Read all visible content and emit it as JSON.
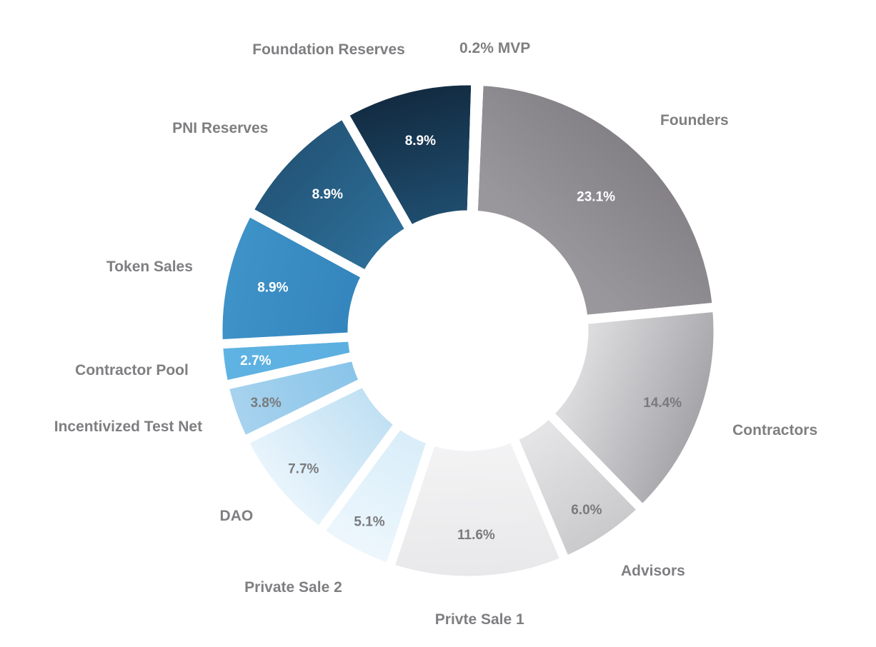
{
  "chart_data": {
    "type": "pie",
    "donut": true,
    "slices": [
      {
        "label": "Founders",
        "value": 23.1,
        "display": "23.1%",
        "color_outer": "#838085",
        "color_inner": "#99979c",
        "text_color": "#ffffff"
      },
      {
        "label": "Contractors",
        "value": 14.4,
        "display": "14.4%",
        "color_outer": "#a4a3a7",
        "color_inner": "#dcdcde",
        "text_color": "#7a7a7d"
      },
      {
        "label": "Advisors",
        "value": 6.0,
        "display": "6.0%",
        "color_outer": "#c9c9cc",
        "color_inner": "#e6e6e8",
        "text_color": "#7a7a7d"
      },
      {
        "label": "Privte Sale 1",
        "value": 11.6,
        "display": "11.6%",
        "color_outer": "#e8e8ea",
        "color_inner": "#f3f3f4",
        "text_color": "#7a7a7d"
      },
      {
        "label": "Private Sale 2",
        "value": 5.1,
        "display": "5.1%",
        "color_outer": "#eef7fd",
        "color_inner": "#d8edf9",
        "text_color": "#7a7a7d"
      },
      {
        "label": "DAO",
        "value": 7.7,
        "display": "7.7%",
        "color_outer": "#eaf5fc",
        "color_inner": "#bfe0f3",
        "text_color": "#7a7a7d"
      },
      {
        "label": "Incentivized Test Net",
        "value": 3.8,
        "display": "3.8%",
        "color_outer": "#a8d3ee",
        "color_inner": "#88c4e9",
        "text_color": "#7a7a7d"
      },
      {
        "label": "Contractor  Pool",
        "value": 2.7,
        "display": "2.7%",
        "color_outer": "#5fb3e3",
        "color_inner": "#5cafe0",
        "text_color": "#ffffff"
      },
      {
        "label": "Token Sales",
        "value": 8.9,
        "display": "8.9%",
        "color_outer": "#3e93c8",
        "color_inner": "#3485bd",
        "text_color": "#ffffff"
      },
      {
        "label": "PNI Reserves",
        "value": 8.9,
        "display": "8.9%",
        "color_outer": "#235578",
        "color_inner": "#2d6e98",
        "text_color": "#ffffff"
      },
      {
        "label": "Foundation Reserves",
        "value": 8.9,
        "display": "8.9%",
        "color_outer": "#122a40",
        "color_inner": "#1f4d6e",
        "text_color": "#ffffff"
      },
      {
        "label": "0.2% MVP",
        "value": 0.2,
        "display": "",
        "color_outer": "#1b4a6a",
        "color_inner": "#1b4a6a",
        "text_color": "#ffffff"
      }
    ],
    "legend": "none",
    "label_color": "#7f7f82",
    "background": "#ffffff"
  }
}
